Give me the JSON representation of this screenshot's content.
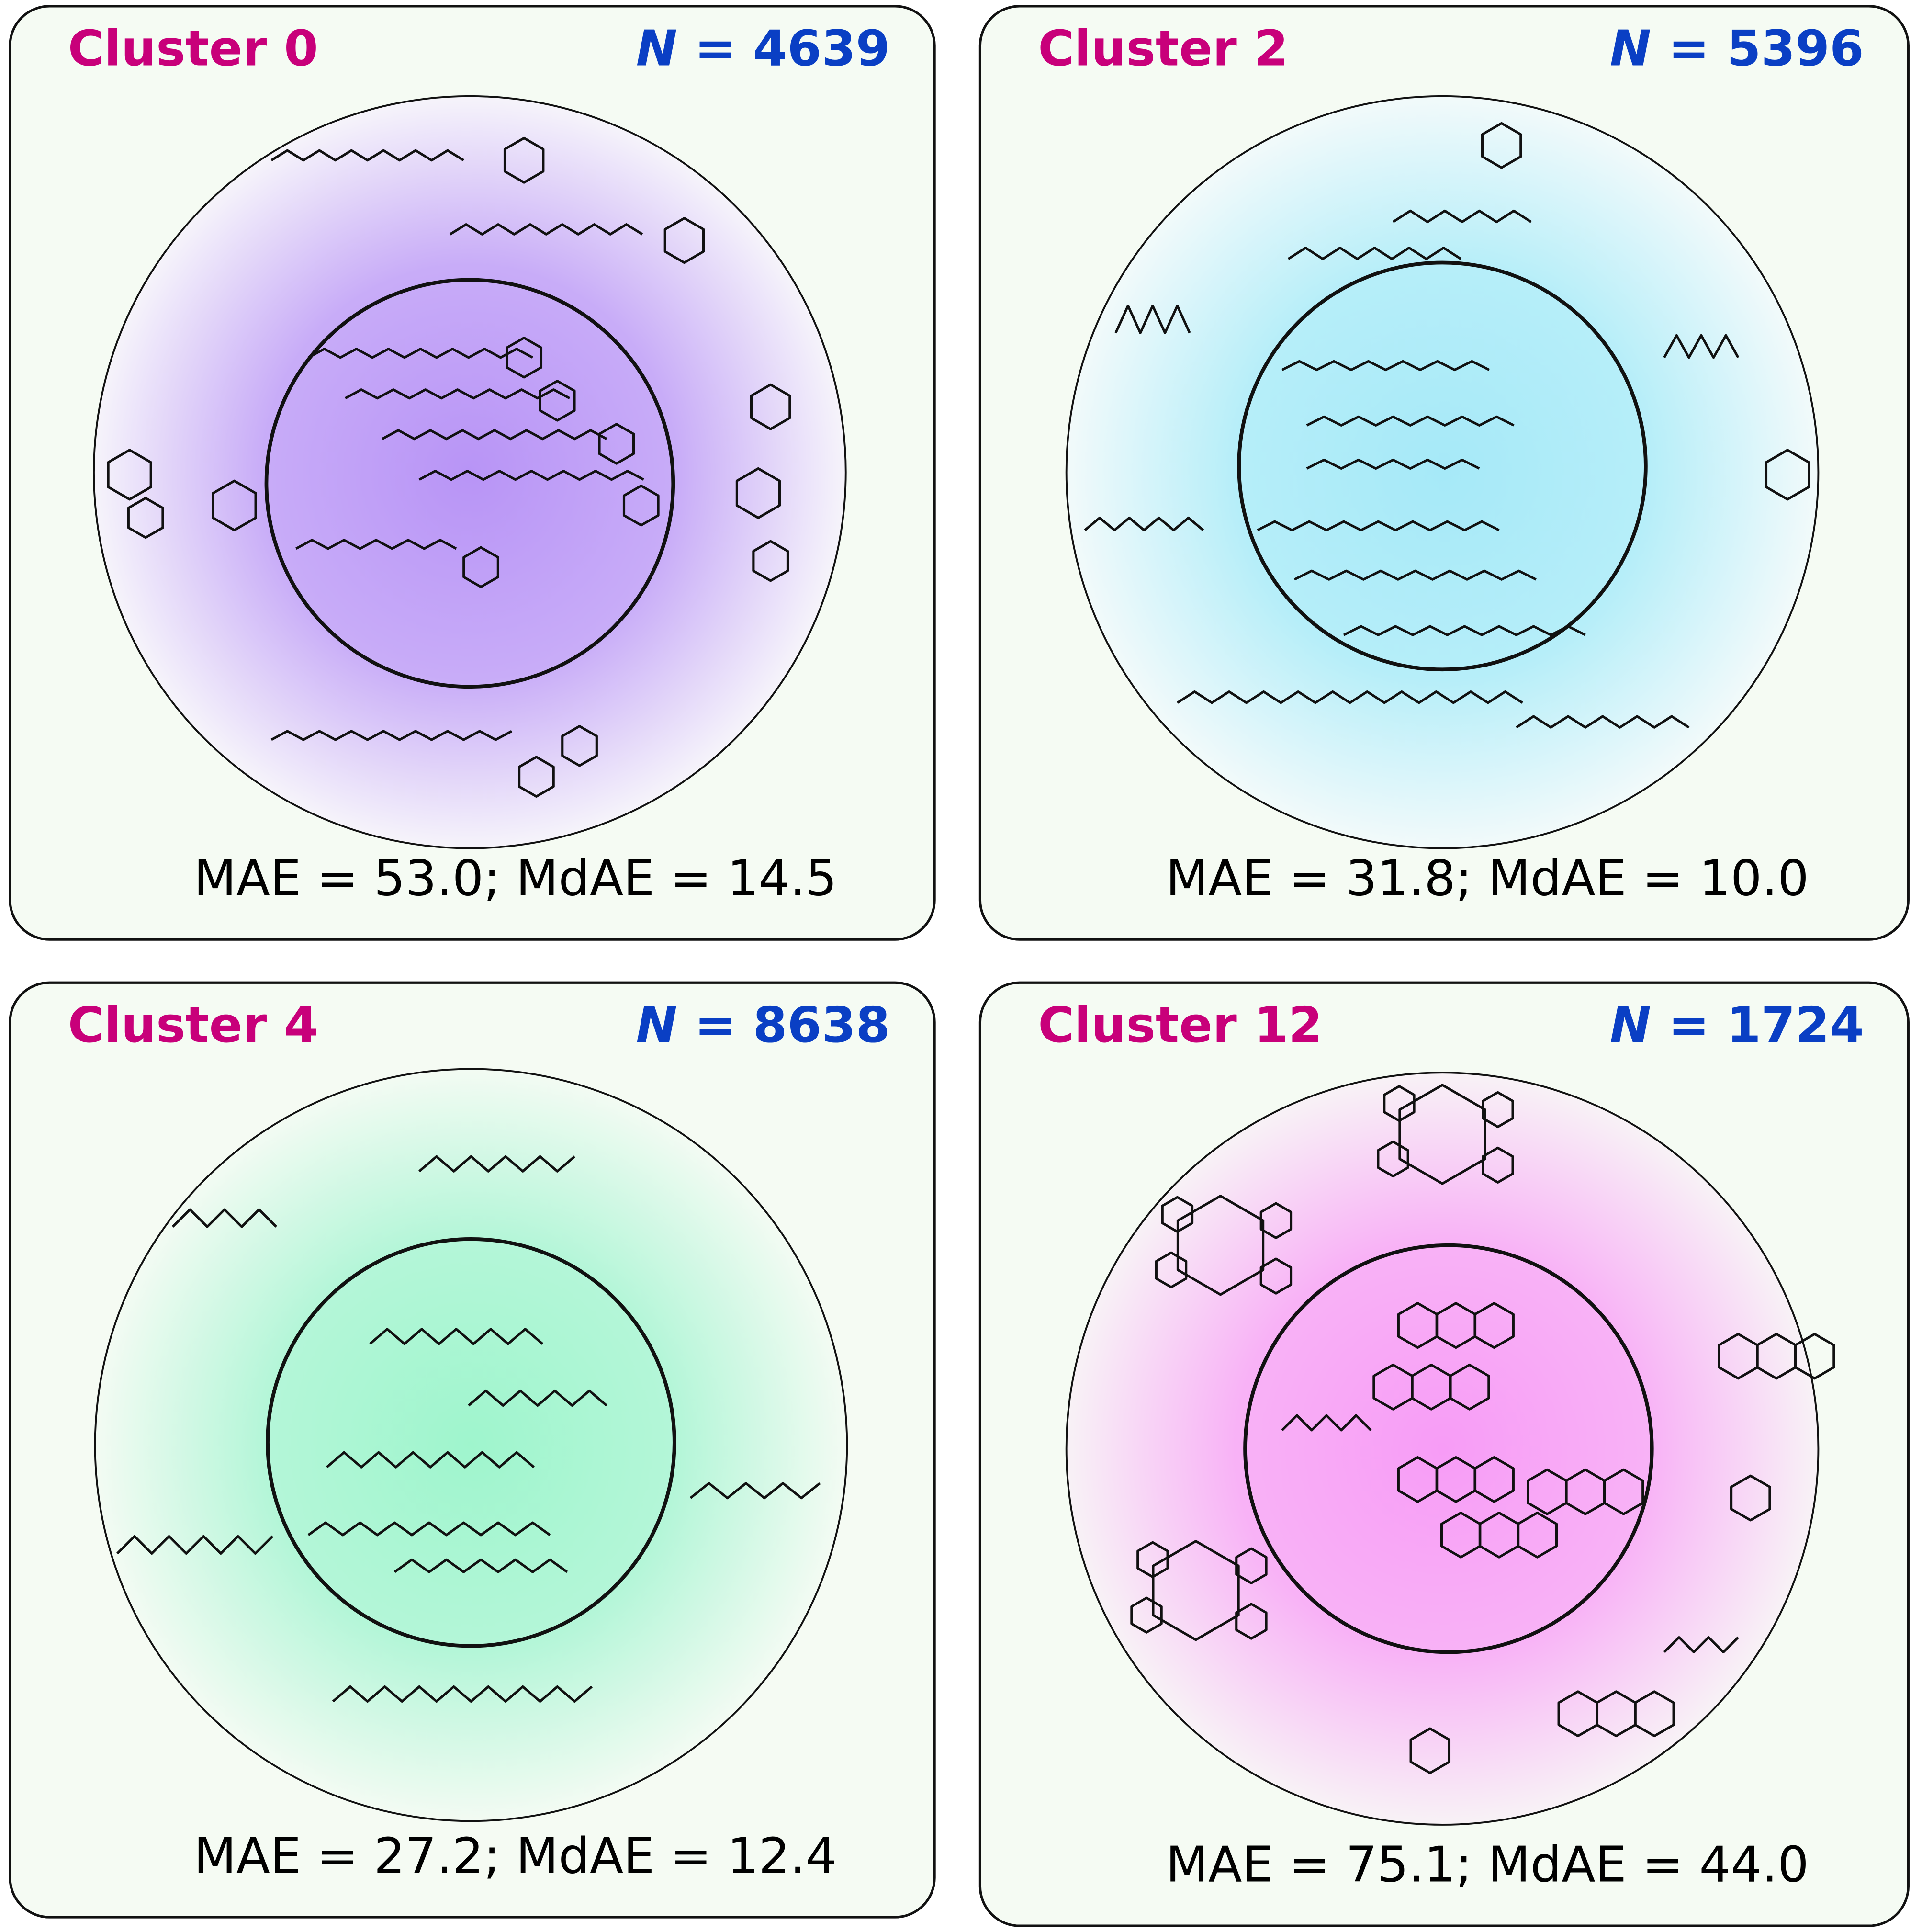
{
  "panels": [
    {
      "title": "Cluster 0",
      "count_symbol": "N",
      "count": "= 4639",
      "metrics": "MAE = 53.0; MdAE = 14.5"
    },
    {
      "title": "Cluster 2",
      "count_symbol": "N",
      "count": "= 5396",
      "metrics": "MAE = 31.8; MdAE = 10.0"
    },
    {
      "title": "Cluster 4",
      "count_symbol": "N",
      "count": "= 8638",
      "metrics": "MAE = 27.2; MdAE = 12.4"
    },
    {
      "title": "Cluster 12",
      "count_symbol": "N",
      "count": "= 1724",
      "metrics": "MAE = 75.1; MdAE = 44.0"
    }
  ]
}
